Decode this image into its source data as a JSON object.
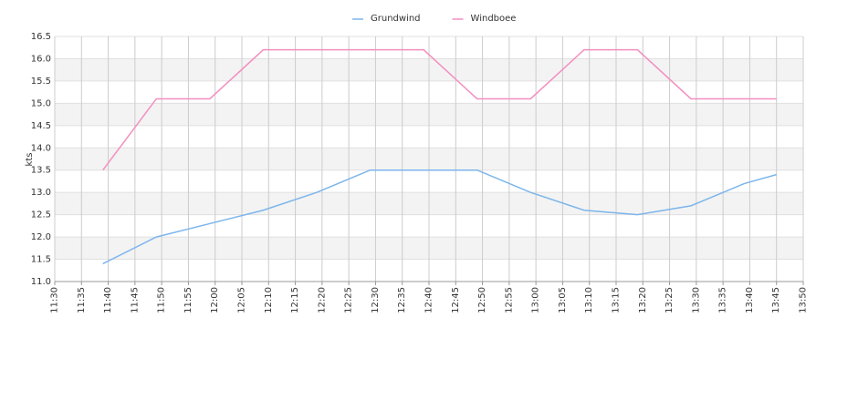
{
  "chart_data": {
    "type": "line",
    "y_label": "kts",
    "x": [
      "11:39",
      "11:49",
      "11:59",
      "12:09",
      "12:19",
      "12:29",
      "12:39",
      "12:49",
      "12:59",
      "13:09",
      "13:19",
      "13:29",
      "13:39",
      "13:45"
    ],
    "series": [
      {
        "name": "Grundwind",
        "color": "#7cb5ec",
        "values": [
          11.4,
          12.0,
          12.3,
          12.6,
          13.0,
          13.5,
          13.5,
          13.5,
          13.0,
          12.6,
          12.5,
          12.7,
          13.2,
          13.4
        ]
      },
      {
        "name": "Windboee",
        "color": "#f28fc0",
        "values": [
          13.5,
          15.1,
          15.1,
          16.2,
          16.2,
          16.2,
          16.2,
          15.1,
          15.1,
          16.2,
          16.2,
          15.1,
          15.1,
          15.1
        ]
      }
    ],
    "xlim": [
      "11:30",
      "13:50"
    ],
    "xticks": [
      "11:30",
      "11:35",
      "11:40",
      "11:45",
      "11:50",
      "11:55",
      "12:00",
      "12:05",
      "12:10",
      "12:15",
      "12:20",
      "12:25",
      "12:30",
      "12:35",
      "12:40",
      "12:45",
      "12:50",
      "12:55",
      "13:00",
      "13:05",
      "13:10",
      "13:15",
      "13:20",
      "13:25",
      "13:30",
      "13:35",
      "13:40",
      "13:45",
      "13:50"
    ],
    "ylim": [
      11,
      16.5
    ],
    "yticks": [
      {
        "value": 11,
        "label": "11.0"
      },
      11.5,
      {
        "value": 12,
        "label": "12.0"
      },
      12.5,
      {
        "value": 13,
        "label": "13.0"
      },
      13.5,
      {
        "value": 14,
        "label": "14.0"
      },
      14.5,
      {
        "value": 15,
        "label": "15.0"
      },
      15.5,
      {
        "value": 16,
        "label": "16.0"
      },
      16.5
    ],
    "grid": true,
    "legend": "top"
  }
}
